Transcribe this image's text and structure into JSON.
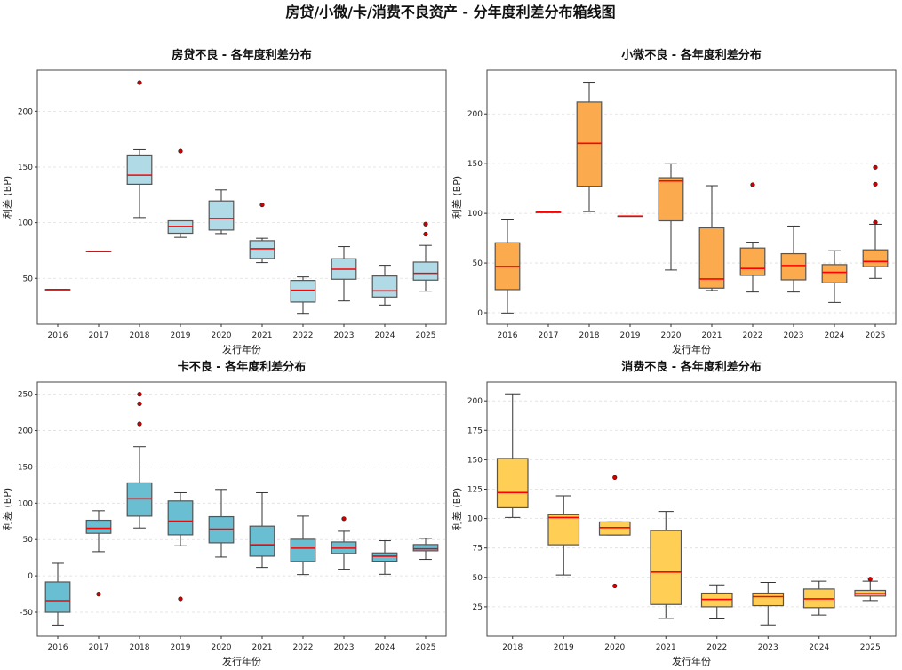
{
  "title": "房贷/小微/卡/消费不良资产 - 分年度利差分布箱线图",
  "chart_data": [
    {
      "type": "box",
      "title": "房贷不良 - 各年度利差分布",
      "xlabel": "发行年份",
      "ylabel": "利差 (BP)",
      "ylim": [
        8.7,
        237
      ],
      "yticks": [
        50,
        100,
        150,
        200
      ],
      "grid": "y-dashed",
      "color": "#add8e6",
      "categories": [
        "2016",
        "2017",
        "2018",
        "2019",
        "2020",
        "2021",
        "2022",
        "2023",
        "2024",
        "2025"
      ],
      "boxes": [
        {
          "low": 40,
          "q1": 40,
          "median": 40,
          "q3": 40,
          "high": 40,
          "outliers": []
        },
        {
          "low": 74,
          "q1": 74,
          "median": 74,
          "q3": 74.5,
          "high": 74.5,
          "outliers": []
        },
        {
          "low": 104.6,
          "q1": 134.5,
          "median": 142.7,
          "q3": 160.8,
          "high": 165.6,
          "outliers": [
            225.8
          ]
        },
        {
          "low": 86.8,
          "q1": 90.5,
          "median": 96.6,
          "q3": 101.7,
          "high": 101.7,
          "outliers": [
            164.3
          ]
        },
        {
          "low": 90.2,
          "q1": 93.4,
          "median": 103.8,
          "q3": 119.5,
          "high": 129.4,
          "outliers": []
        },
        {
          "low": 64.1,
          "q1": 67.8,
          "median": 76.6,
          "q3": 83.8,
          "high": 86,
          "outliers": [
            116
          ]
        },
        {
          "low": 18.5,
          "q1": 28.7,
          "median": 39.3,
          "q3": 48.1,
          "high": 51.3,
          "outliers": []
        },
        {
          "low": 29.7,
          "q1": 49.2,
          "median": 58.2,
          "q3": 67.6,
          "high": 78.5,
          "outliers": []
        },
        {
          "low": 26,
          "q1": 33.2,
          "median": 38.8,
          "q3": 52.1,
          "high": 61.7,
          "outliers": []
        },
        {
          "low": 38.5,
          "q1": 48.4,
          "median": 54.5,
          "q3": 64.6,
          "high": 79.6,
          "outliers": [
            89.7,
            98.7
          ]
        }
      ]
    },
    {
      "type": "box",
      "title": "小微不良 - 各年度利差分布",
      "xlabel": "发行年份",
      "ylabel": "利差 (BP)",
      "ylim": [
        -11.6,
        244
      ],
      "yticks": [
        0,
        50,
        100,
        150,
        200
      ],
      "grid": "y-dashed",
      "color": "#fba544",
      "categories": [
        "2016",
        "2017",
        "2018",
        "2019",
        "2020",
        "2021",
        "2022",
        "2023",
        "2024",
        "2025"
      ],
      "boxes": [
        {
          "low": -0.3,
          "q1": 23.3,
          "median": 46.6,
          "q3": 70.4,
          "high": 93.4,
          "outliers": []
        },
        {
          "low": 101.2,
          "q1": 101.2,
          "median": 101.2,
          "q3": 101.2,
          "high": 101.2,
          "outliers": []
        },
        {
          "low": 101.8,
          "q1": 127.2,
          "median": 170.4,
          "q3": 211.9,
          "high": 231.9,
          "outliers": []
        },
        {
          "low": 97.3,
          "q1": 97.3,
          "median": 97.3,
          "q3": 97.3,
          "high": 97.3,
          "outliers": []
        },
        {
          "low": 43,
          "q1": 92.5,
          "median": 132.5,
          "q3": 135.8,
          "high": 149.9,
          "outliers": []
        },
        {
          "low": 22.4,
          "q1": 24.8,
          "median": 34,
          "q3": 85.4,
          "high": 127.8,
          "outliers": []
        },
        {
          "low": 20.9,
          "q1": 37.6,
          "median": 44.5,
          "q3": 65.1,
          "high": 71,
          "outliers": [
            128.7
          ]
        },
        {
          "low": 20.9,
          "q1": 33.1,
          "median": 47.5,
          "q3": 59.4,
          "high": 87.2,
          "outliers": []
        },
        {
          "low": 10.4,
          "q1": 30.1,
          "median": 40.6,
          "q3": 48.4,
          "high": 62.4,
          "outliers": []
        },
        {
          "low": 34.6,
          "q1": 46.3,
          "median": 51.6,
          "q3": 63.3,
          "high": 89,
          "outliers": [
            91,
            129.3,
            146.3
          ]
        }
      ]
    },
    {
      "type": "box",
      "title": "卡不良 - 各年度利差分布",
      "xlabel": "发行年份",
      "ylabel": "利差 (BP)",
      "ylim": [
        -83,
        266.7
      ],
      "yticks": [
        -50,
        0,
        50,
        100,
        150,
        200,
        250
      ],
      "grid": "y-dashed",
      "color": "#62bbcf",
      "categories": [
        "2016",
        "2017",
        "2018",
        "2019",
        "2020",
        "2021",
        "2022",
        "2023",
        "2024",
        "2025"
      ],
      "boxes": [
        {
          "low": -67.6,
          "q1": -50,
          "median": -34.1,
          "q3": -8.4,
          "high": 17.3,
          "outliers": []
        },
        {
          "low": 33.3,
          "q1": 58.6,
          "median": 65.5,
          "q3": 76.5,
          "high": 89.6,
          "outliers": [
            -25.1
          ]
        },
        {
          "low": 65.9,
          "q1": 82.2,
          "median": 106.1,
          "q3": 128,
          "high": 177.8,
          "outliers": [
            209.2,
            236.9,
            250
          ]
        },
        {
          "low": 41.4,
          "q1": 56.5,
          "median": 75.3,
          "q3": 103.1,
          "high": 114.5,
          "outliers": [
            -31.6
          ]
        },
        {
          "low": 25.9,
          "q1": 45.5,
          "median": 64.3,
          "q3": 81.4,
          "high": 119,
          "outliers": []
        },
        {
          "low": 11.6,
          "q1": 27.1,
          "median": 42.7,
          "q3": 68.4,
          "high": 114.5,
          "outliers": []
        },
        {
          "low": 1.8,
          "q1": 19.8,
          "median": 38.2,
          "q3": 50.4,
          "high": 82.2,
          "outliers": []
        },
        {
          "low": 9.2,
          "q1": 30.8,
          "median": 38.2,
          "q3": 46.7,
          "high": 61.4,
          "outliers": [
            78.6
          ]
        },
        {
          "low": 2.2,
          "q1": 20.2,
          "median": 27.1,
          "q3": 31.6,
          "high": 48.4,
          "outliers": []
        },
        {
          "low": 22.7,
          "q1": 34.5,
          "median": 37.3,
          "q3": 43.1,
          "high": 51.6,
          "outliers": []
        }
      ]
    },
    {
      "type": "box",
      "title": "消费不良 - 各年度利差分布",
      "xlabel": "发行年份",
      "ylabel": "利差 (BP)",
      "ylim": [
        0,
        216
      ],
      "yticks": [
        25,
        50,
        75,
        100,
        125,
        150,
        175,
        200
      ],
      "grid": "y-dashed",
      "color": "#ffcb4c",
      "categories": [
        "2018",
        "2019",
        "2020",
        "2021",
        "2022",
        "2023",
        "2024",
        "2025"
      ],
      "boxes": [
        {
          "low": 100.9,
          "q1": 109.2,
          "median": 122.1,
          "q3": 151.1,
          "high": 206,
          "outliers": []
        },
        {
          "low": 52,
          "q1": 77.7,
          "median": 100.9,
          "q3": 103.2,
          "high": 119.3,
          "outliers": []
        },
        {
          "low": 86,
          "q1": 86,
          "median": 92.3,
          "q3": 97.1,
          "high": 97.1,
          "outliers": [
            134.9,
            42.7
          ]
        },
        {
          "low": 15.2,
          "q1": 27,
          "median": 54.5,
          "q3": 89.8,
          "high": 106,
          "outliers": []
        },
        {
          "low": 14.7,
          "q1": 25,
          "median": 31.3,
          "q3": 36.6,
          "high": 43.6,
          "outliers": []
        },
        {
          "low": 9.6,
          "q1": 26,
          "median": 33.6,
          "q3": 36.6,
          "high": 45.7,
          "outliers": []
        },
        {
          "low": 18,
          "q1": 24.3,
          "median": 31.8,
          "q3": 40.1,
          "high": 46.7,
          "outliers": []
        },
        {
          "low": 30.3,
          "q1": 34.1,
          "median": 36.1,
          "q3": 38.9,
          "high": 46.7,
          "outliers": [
            48.5
          ]
        }
      ]
    }
  ],
  "colors": {
    "median": "#ff0000",
    "outlier": "#cc0000",
    "edge": "#555555"
  }
}
